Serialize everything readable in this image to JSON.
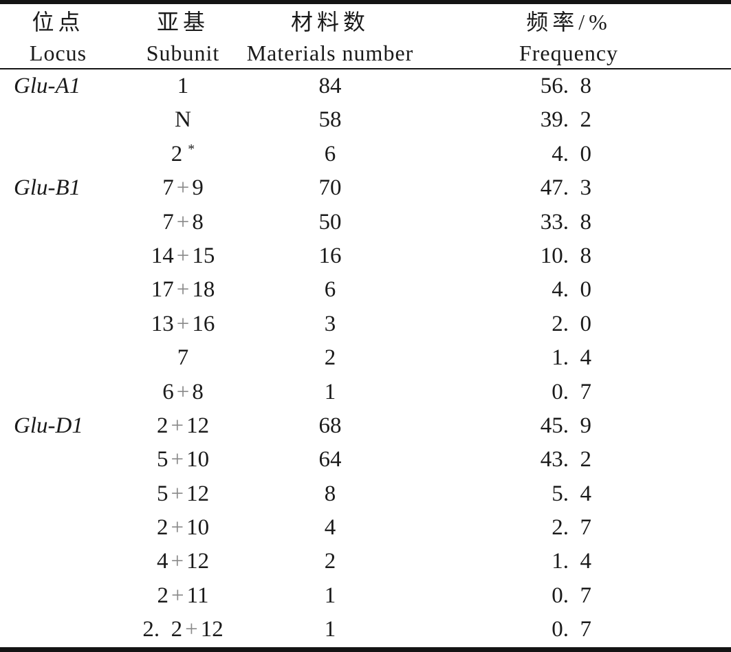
{
  "table": {
    "type": "table",
    "columns": [
      {
        "zh": "位点",
        "en": "Locus"
      },
      {
        "zh": "亚基",
        "en": "Subunit"
      },
      {
        "zh": "材料数",
        "en": "Materials number"
      },
      {
        "zh": "频率/%",
        "en": "Frequency"
      }
    ],
    "groups": [
      {
        "locus": "Glu-A1",
        "entries": [
          {
            "subunit": "1",
            "materials": "84",
            "frequency": "56.8"
          },
          {
            "subunit": "N",
            "materials": "58",
            "frequency": "39.2"
          },
          {
            "subunit": "2*",
            "materials": "6",
            "frequency": "4.0"
          }
        ]
      },
      {
        "locus": "Glu-B1",
        "entries": [
          {
            "subunit": "7+9",
            "materials": "70",
            "frequency": "47.3"
          },
          {
            "subunit": "7+8",
            "materials": "50",
            "frequency": "33.8"
          },
          {
            "subunit": "14+15",
            "materials": "16",
            "frequency": "10.8"
          },
          {
            "subunit": "17+18",
            "materials": "6",
            "frequency": "4.0"
          },
          {
            "subunit": "13+16",
            "materials": "3",
            "frequency": "2.0"
          },
          {
            "subunit": "7",
            "materials": "2",
            "frequency": "1.4"
          },
          {
            "subunit": "6+8",
            "materials": "1",
            "frequency": "0.7"
          }
        ]
      },
      {
        "locus": "Glu-D1",
        "entries": [
          {
            "subunit": "2+12",
            "materials": "68",
            "frequency": "45.9"
          },
          {
            "subunit": "5+10",
            "materials": "64",
            "frequency": "43.2"
          },
          {
            "subunit": "5+12",
            "materials": "8",
            "frequency": "5.4"
          },
          {
            "subunit": "2+10",
            "materials": "4",
            "frequency": "2.7"
          },
          {
            "subunit": "4+12",
            "materials": "2",
            "frequency": "1.4"
          },
          {
            "subunit": "2+11",
            "materials": "1",
            "frequency": "0.7"
          },
          {
            "subunit": "2.2+12",
            "materials": "1",
            "frequency": "0.7"
          }
        ]
      }
    ]
  },
  "colors": {
    "background": "#ffffff",
    "text": "#1a1a1a",
    "rule": "#141414",
    "plus_sign": "#8a8a8a"
  }
}
